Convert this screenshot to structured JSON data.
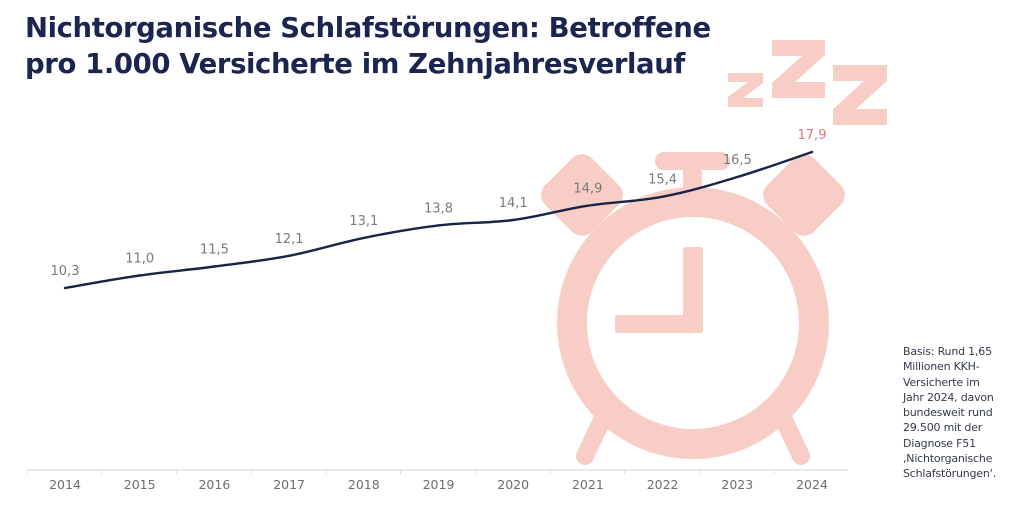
{
  "title": {
    "line1": "Nichtorganische Schlafstörungen: Betroffene",
    "line2": "pro 1.000 Versicherte im Zehnjahresverlauf"
  },
  "note": {
    "lines": [
      "Basis: Rund 1,65",
      "Millionen KKH-",
      "Versicherte im",
      "Jahr 2024, davon",
      "bundesweit rund",
      "29.500 mit der",
      "Diagnose F51",
      "‚Nichtorganische",
      "Schlafstörungen‘."
    ]
  },
  "decoration": {
    "icon": "alarm-clock-icon",
    "sleep_icon": "zzz-icon",
    "color": "#f8cdc6"
  },
  "colors": {
    "title": "#1b2550",
    "line": "#1a2448",
    "label": "#7a7a7a",
    "highlight_label": "#e07676",
    "axis": "#dddddd"
  },
  "chart_data": {
    "type": "line",
    "title": "Nichtorganische Schlafstörungen: Betroffene pro 1.000 Versicherte im Zehnjahresverlauf",
    "xlabel": "",
    "ylabel": "",
    "categories": [
      "2014",
      "2015",
      "2016",
      "2017",
      "2018",
      "2019",
      "2020",
      "2021",
      "2022",
      "2023",
      "2024"
    ],
    "series": [
      {
        "name": "Betroffene pro 1.000 Versicherte",
        "values": [
          10.3,
          11.0,
          11.5,
          12.1,
          13.1,
          13.8,
          14.1,
          14.9,
          15.4,
          16.5,
          17.9
        ],
        "labels": [
          "10,3",
          "11,0",
          "11,5",
          "12,1",
          "13,1",
          "13,8",
          "14,1",
          "14,9",
          "15,4",
          "16,5",
          "17,9"
        ]
      }
    ],
    "highlight_index": 10,
    "grid": false,
    "legend": "none"
  }
}
